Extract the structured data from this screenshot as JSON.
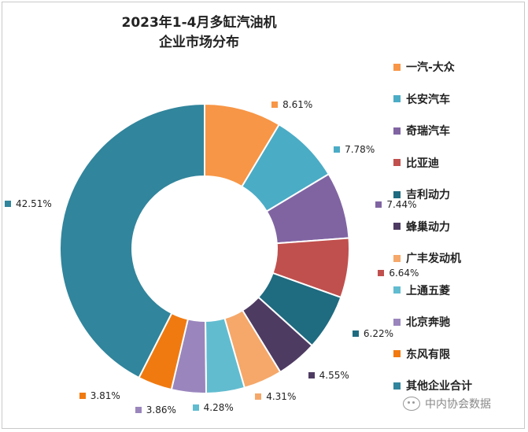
{
  "chart_data": {
    "type": "pie",
    "title_lines": [
      "2023年1-4月多缸汽油机",
      "企业市场分布"
    ],
    "legend_position": "right",
    "categories": [
      "一汽-大众",
      "长安汽车",
      "奇瑞汽车",
      "比亚迪",
      "吉利动力",
      "蜂巢动力",
      "广丰发动机",
      "上通五菱",
      "北京奔驰",
      "东风有限",
      "其他企业合计"
    ],
    "values": [
      8.61,
      7.78,
      7.44,
      6.64,
      6.22,
      4.55,
      4.31,
      4.28,
      3.86,
      3.81,
      42.51
    ],
    "value_labels": [
      "8.61%",
      "7.78%",
      "7.44%",
      "6.64%",
      "6.22%",
      "4.55%",
      "4.31%",
      "4.28%",
      "3.86%",
      "3.81%",
      "42.51%"
    ],
    "colors": [
      "#f79646",
      "#4bacc6",
      "#8064a2",
      "#c0504d",
      "#1f6b80",
      "#4e3b62",
      "#f5a86a",
      "#61bcd0",
      "#9a86bd",
      "#f07a10",
      "#31859c"
    ]
  },
  "watermark": {
    "icon": "wechat-icon",
    "text": "中内协会数据"
  }
}
